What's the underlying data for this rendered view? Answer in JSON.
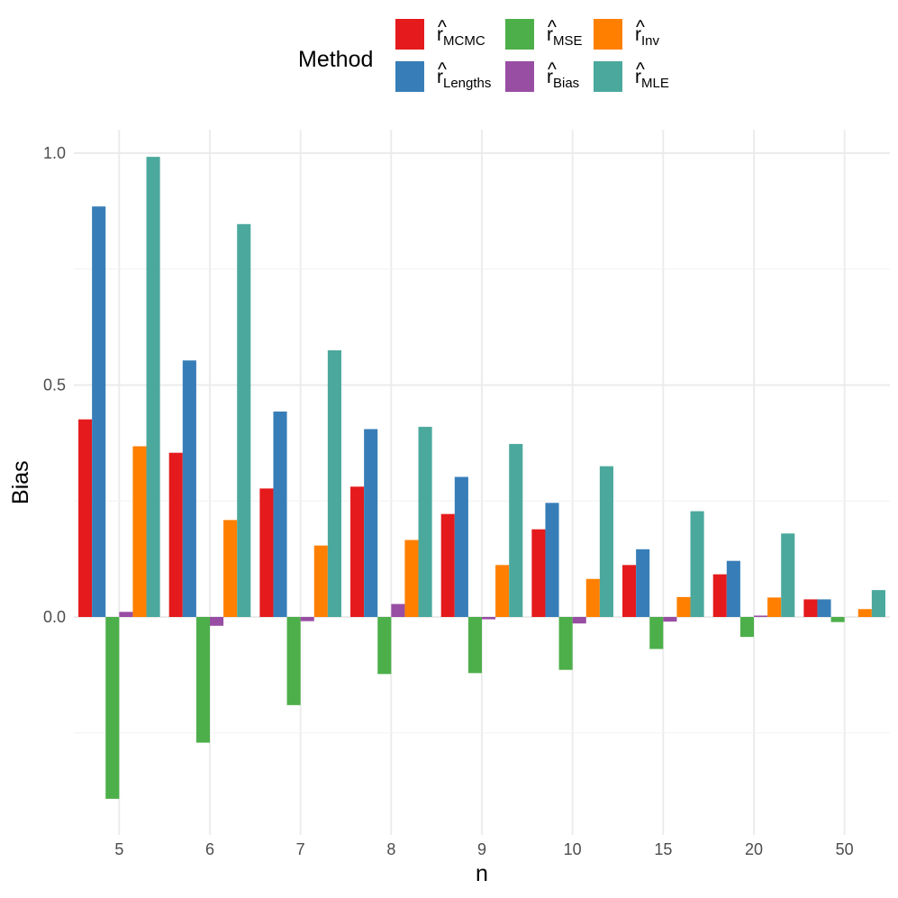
{
  "chart_data": {
    "type": "bar",
    "title": "",
    "xlabel": "n",
    "ylabel": "Bias",
    "categories": [
      "5",
      "6",
      "7",
      "8",
      "9",
      "10",
      "15",
      "20",
      "50"
    ],
    "ylim": [
      -0.47,
      1.05
    ],
    "yticks": [
      0.0,
      0.5,
      1.0
    ],
    "ytick_labels": [
      "0.0",
      "0.5",
      "1.0"
    ],
    "grid": true,
    "legend": {
      "title": "Method",
      "position": "top",
      "columns": 3,
      "rows": 2
    },
    "series": [
      {
        "name": "r̂_MCMC",
        "base": "r",
        "sub": "MCMC",
        "color": "#E41A1C",
        "values": [
          0.426,
          0.354,
          0.277,
          0.281,
          0.222,
          0.189,
          0.112,
          0.092,
          0.038
        ]
      },
      {
        "name": "r̂_Lengths",
        "base": "r",
        "sub": "Lengths",
        "color": "#377EB8",
        "values": [
          0.885,
          0.553,
          0.443,
          0.405,
          0.302,
          0.246,
          0.146,
          0.121,
          0.038
        ]
      },
      {
        "name": "r̂_MSE",
        "base": "r",
        "sub": "MSE",
        "color": "#4DAF4A",
        "values": [
          -0.392,
          -0.271,
          -0.19,
          -0.123,
          -0.121,
          -0.114,
          -0.069,
          -0.043,
          -0.011
        ]
      },
      {
        "name": "r̂_Bias",
        "base": "r",
        "sub": "Bias",
        "color": "#984EA3",
        "values": [
          0.011,
          -0.019,
          -0.009,
          0.028,
          -0.005,
          -0.014,
          -0.01,
          0.003,
          0.0
        ]
      },
      {
        "name": "r̂_Inv",
        "base": "r",
        "sub": "Inv",
        "color": "#FF7F00",
        "values": [
          0.368,
          0.209,
          0.154,
          0.166,
          0.112,
          0.082,
          0.043,
          0.042,
          0.017
        ]
      },
      {
        "name": "r̂_MLE",
        "base": "r",
        "sub": "MLE",
        "color": "#4BA89C",
        "values": [
          0.992,
          0.847,
          0.575,
          0.41,
          0.373,
          0.325,
          0.228,
          0.18,
          0.058
        ]
      }
    ]
  }
}
